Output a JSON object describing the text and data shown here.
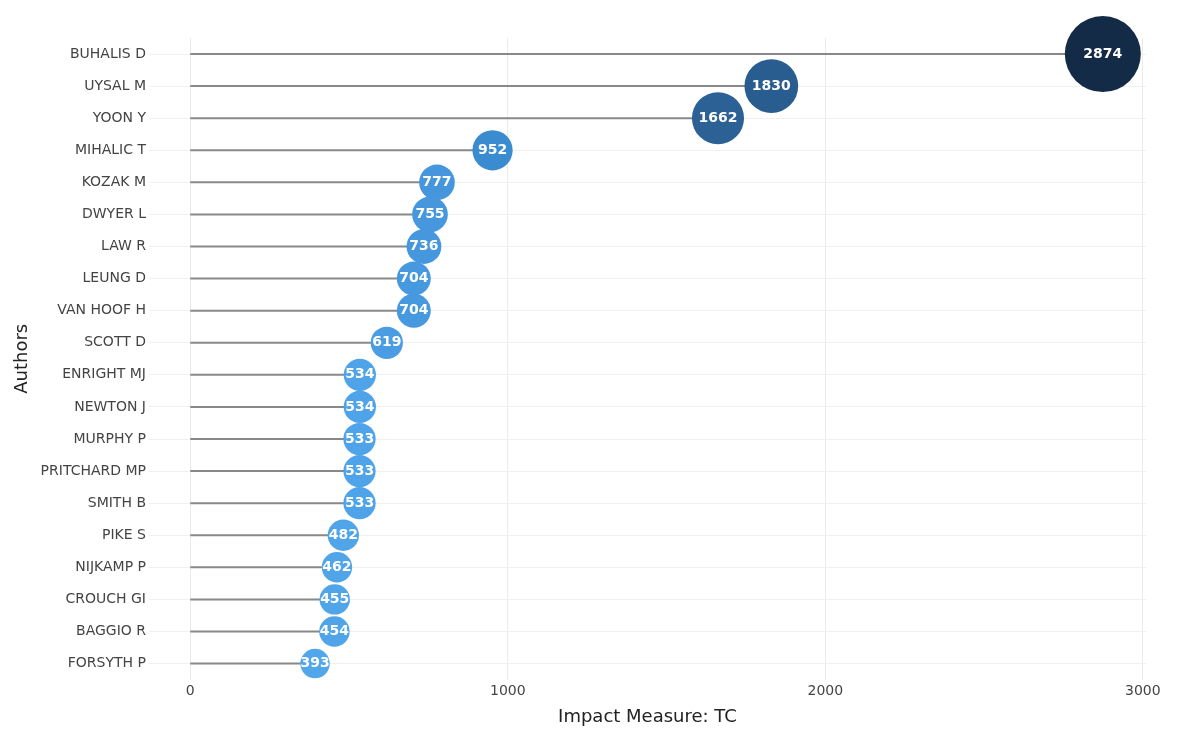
{
  "chart_data": {
    "type": "lollipop",
    "orientation": "horizontal",
    "xlabel": "Impact Measure: TC",
    "ylabel": "Authors",
    "categories": [
      "BUHALIS D",
      "UYSAL M",
      "YOON Y",
      "MIHALIC T",
      "KOZAK M",
      "DWYER L",
      "LAW R",
      "LEUNG D",
      "VAN HOOF H",
      "SCOTT D",
      "ENRIGHT MJ",
      "NEWTON J",
      "MURPHY P",
      "PRITCHARD MP",
      "SMITH B",
      "PIKE S",
      "NIJKAMP P",
      "CROUCH GI",
      "BAGGIO R",
      "FORSYTH P"
    ],
    "values": [
      2874,
      1830,
      1662,
      952,
      777,
      755,
      736,
      704,
      704,
      619,
      534,
      534,
      533,
      533,
      533,
      482,
      462,
      455,
      454,
      393
    ],
    "sizes": [
      1,
      0.5,
      0.47,
      0.28,
      0.22,
      0.22,
      0.21,
      0.2,
      0.2,
      0.18,
      0.18,
      0.18,
      0.18,
      0.18,
      0.18,
      0.17,
      0.16,
      0.16,
      0.16,
      0.15
    ],
    "colors": [
      "#132b47",
      "#2a5d8f",
      "#2c6196",
      "#3b8bd0",
      "#4596dc",
      "#4697dd",
      "#4697dd",
      "#4799df",
      "#4799df",
      "#4a9de2",
      "#4fa3e8",
      "#4fa3e8",
      "#4fa3e8",
      "#4fa3e8",
      "#4fa3e8",
      "#50a5e9",
      "#50a5e9",
      "#50a5e9",
      "#50a5e9",
      "#52a7eb"
    ],
    "xlim": [
      -130,
      3010
    ],
    "xticks": [
      0,
      1000,
      2000,
      3000
    ],
    "grid": true,
    "data_labels": true
  }
}
